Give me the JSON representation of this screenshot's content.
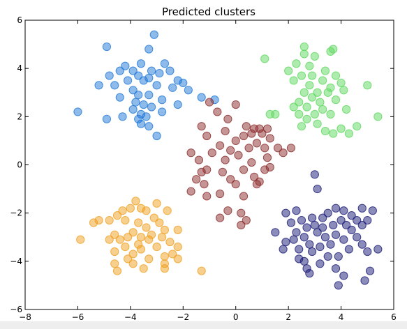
{
  "chart_data": {
    "type": "scatter",
    "title": "Predicted clusters",
    "xlabel": "",
    "ylabel": "",
    "xlim": [
      -8,
      6
    ],
    "ylim": [
      -6,
      6
    ],
    "xticks": [
      -8,
      -6,
      -4,
      -2,
      0,
      2,
      4,
      6
    ],
    "yticks": [
      -6,
      -4,
      -2,
      0,
      2,
      4,
      6
    ],
    "xtick_labels": [
      "−8",
      "−6",
      "−4",
      "−2",
      "0",
      "2",
      "4",
      "6"
    ],
    "ytick_labels": [
      "−6",
      "−4",
      "−2",
      "0",
      "2",
      "4",
      "6"
    ],
    "grid": false,
    "legend": false,
    "marker_opacity": 0.5,
    "series": [
      {
        "color": "#1f78d8",
        "points": [
          [
            -3.1,
            5.4
          ],
          [
            -4.9,
            4.9
          ],
          [
            -3.3,
            4.8
          ],
          [
            -4.2,
            4.1
          ],
          [
            -3.6,
            4.2
          ],
          [
            -2.7,
            4.2
          ],
          [
            -4.4,
            3.9
          ],
          [
            -3.9,
            3.9
          ],
          [
            -3.2,
            3.9
          ],
          [
            -2.9,
            3.8
          ],
          [
            -2.5,
            3.9
          ],
          [
            -4.8,
            3.7
          ],
          [
            -3.7,
            3.7
          ],
          [
            -3.3,
            3.6
          ],
          [
            -2.2,
            3.5
          ],
          [
            -4.1,
            3.5
          ],
          [
            -3.5,
            3.5
          ],
          [
            -2.0,
            3.4
          ],
          [
            -5.2,
            3.3
          ],
          [
            -4.6,
            3.3
          ],
          [
            -3.0,
            3.3
          ],
          [
            -3.9,
            3.1
          ],
          [
            -2.4,
            3.2
          ],
          [
            -1.8,
            3.1
          ],
          [
            -3.7,
            2.9
          ],
          [
            -3.3,
            2.9
          ],
          [
            -2.8,
            2.7
          ],
          [
            -4.4,
            2.8
          ],
          [
            -1.3,
            2.8
          ],
          [
            -3.8,
            2.6
          ],
          [
            -3.5,
            2.5
          ],
          [
            -2.2,
            2.5
          ],
          [
            -3.9,
            2.3
          ],
          [
            -3.2,
            2.4
          ],
          [
            -3.6,
            2.1
          ],
          [
            -2.8,
            2.2
          ],
          [
            -4.3,
            2.0
          ],
          [
            -3.4,
            2.0
          ],
          [
            -6.0,
            2.2
          ],
          [
            -4.9,
            1.9
          ],
          [
            -3.7,
            1.9
          ],
          [
            -3.3,
            1.6
          ],
          [
            -3.6,
            1.7
          ],
          [
            -3.0,
            1.2
          ],
          [
            -0.8,
            2.7
          ]
        ]
      },
      {
        "color": "#5ed85e",
        "points": [
          [
            2.6,
            4.9
          ],
          [
            3.7,
            4.8
          ],
          [
            2.6,
            4.6
          ],
          [
            3.0,
            4.5
          ],
          [
            3.6,
            4.7
          ],
          [
            1.1,
            4.4
          ],
          [
            2.3,
            4.2
          ],
          [
            2.8,
            4.1
          ],
          [
            2.0,
            3.9
          ],
          [
            3.4,
            3.9
          ],
          [
            2.5,
            3.7
          ],
          [
            2.9,
            3.7
          ],
          [
            3.8,
            3.7
          ],
          [
            2.2,
            3.5
          ],
          [
            3.3,
            3.5
          ],
          [
            4.0,
            3.4
          ],
          [
            2.8,
            3.3
          ],
          [
            3.6,
            3.2
          ],
          [
            2.6,
            3.0
          ],
          [
            3.1,
            3.0
          ],
          [
            3.5,
            3.0
          ],
          [
            4.1,
            3.1
          ],
          [
            5.0,
            3.3
          ],
          [
            2.9,
            2.8
          ],
          [
            2.4,
            2.6
          ],
          [
            3.2,
            2.6
          ],
          [
            3.8,
            2.7
          ],
          [
            2.7,
            2.4
          ],
          [
            3.3,
            2.3
          ],
          [
            2.2,
            2.4
          ],
          [
            4.2,
            2.3
          ],
          [
            3.0,
            2.1
          ],
          [
            3.6,
            2.1
          ],
          [
            2.4,
            2.1
          ],
          [
            1.5,
            2.1
          ],
          [
            1.3,
            2.1
          ],
          [
            5.4,
            2.0
          ],
          [
            2.7,
            1.9
          ],
          [
            3.1,
            1.7
          ],
          [
            4.6,
            1.6
          ],
          [
            2.5,
            1.6
          ],
          [
            4.0,
            1.5
          ],
          [
            3.4,
            1.4
          ],
          [
            3.7,
            1.3
          ],
          [
            4.3,
            1.3
          ]
        ]
      },
      {
        "color": "#8b2c2c",
        "points": [
          [
            -1.0,
            2.6
          ],
          [
            0.0,
            2.5
          ],
          [
            -0.7,
            2.2
          ],
          [
            -0.3,
            1.9
          ],
          [
            -1.3,
            1.6
          ],
          [
            0.4,
            1.6
          ],
          [
            0.7,
            1.5
          ],
          [
            0.9,
            1.5
          ],
          [
            1.2,
            1.5
          ],
          [
            -0.4,
            1.4
          ],
          [
            0.6,
            1.3
          ],
          [
            1.0,
            1.3
          ],
          [
            0.3,
            1.2
          ],
          [
            -1.1,
            1.2
          ],
          [
            1.3,
            1.1
          ],
          [
            0.0,
            1.0
          ],
          [
            0.8,
            0.9
          ],
          [
            -0.6,
            0.8
          ],
          [
            1.6,
            0.7
          ],
          [
            -0.2,
            0.6
          ],
          [
            0.5,
            0.7
          ],
          [
            1.1,
            0.7
          ],
          [
            2.1,
            0.7
          ],
          [
            -1.7,
            0.5
          ],
          [
            -0.9,
            0.5
          ],
          [
            0.1,
            0.4
          ],
          [
            1.2,
            0.3
          ],
          [
            1.8,
            0.5
          ],
          [
            -1.4,
            0.2
          ],
          [
            -0.4,
            0.2
          ],
          [
            0.6,
            0.1
          ],
          [
            1.3,
            -0.1
          ],
          [
            -1.3,
            -0.3
          ],
          [
            -1.1,
            -0.2
          ],
          [
            -0.5,
            -0.3
          ],
          [
            0.3,
            -0.2
          ],
          [
            1.1,
            -0.2
          ],
          [
            -1.5,
            -0.6
          ],
          [
            -0.2,
            -0.6
          ],
          [
            0.7,
            -0.5
          ],
          [
            0.9,
            -0.7
          ],
          [
            -1.2,
            -0.8
          ],
          [
            0.8,
            -0.8
          ],
          [
            0.0,
            -0.8
          ],
          [
            -1.7,
            -1.1
          ],
          [
            -0.6,
            -1.2
          ],
          [
            0.3,
            -1.3
          ],
          [
            -1.1,
            -1.3
          ],
          [
            -0.3,
            -1.9
          ],
          [
            0.2,
            -2.0
          ],
          [
            -0.6,
            -2.2
          ],
          [
            0.4,
            -2.3
          ],
          [
            0.2,
            -2.5
          ]
        ]
      },
      {
        "color": "#f0a020",
        "points": [
          [
            -3.8,
            -1.5
          ],
          [
            -4.0,
            -1.8
          ],
          [
            -3.6,
            -1.8
          ],
          [
            -3.0,
            -1.6
          ],
          [
            -4.3,
            -1.9
          ],
          [
            -3.4,
            -1.9
          ],
          [
            -2.6,
            -1.9
          ],
          [
            -4.5,
            -2.1
          ],
          [
            -3.1,
            -2.2
          ],
          [
            -3.7,
            -2.4
          ],
          [
            -4.2,
            -2.3
          ],
          [
            -2.9,
            -2.4
          ],
          [
            -5.2,
            -2.3
          ],
          [
            -4.8,
            -2.3
          ],
          [
            -5.4,
            -2.4
          ],
          [
            -3.4,
            -2.6
          ],
          [
            -2.7,
            -2.7
          ],
          [
            -3.9,
            -2.8
          ],
          [
            -3.2,
            -2.9
          ],
          [
            -4.6,
            -2.9
          ],
          [
            -3.6,
            -3.0
          ],
          [
            -2.2,
            -2.7
          ],
          [
            -2.8,
            -3.0
          ],
          [
            -4.1,
            -3.0
          ],
          [
            -4.4,
            -3.1
          ],
          [
            -3.3,
            -3.1
          ],
          [
            -4.8,
            -3.1
          ],
          [
            -5.9,
            -3.1
          ],
          [
            -3.7,
            -3.3
          ],
          [
            -2.5,
            -3.2
          ],
          [
            -4.2,
            -3.4
          ],
          [
            -3.0,
            -3.4
          ],
          [
            -2.2,
            -3.4
          ],
          [
            -4.6,
            -3.6
          ],
          [
            -3.6,
            -3.5
          ],
          [
            -2.4,
            -3.7
          ],
          [
            -3.9,
            -3.7
          ],
          [
            -2.7,
            -3.8
          ],
          [
            -4.1,
            -3.9
          ],
          [
            -3.3,
            -3.9
          ],
          [
            -2.2,
            -3.9
          ],
          [
            -4.6,
            -4.1
          ],
          [
            -3.9,
            -4.1
          ],
          [
            -2.7,
            -4.1
          ],
          [
            -3.5,
            -4.3
          ],
          [
            -2.7,
            -4.3
          ],
          [
            -4.5,
            -4.4
          ],
          [
            -1.3,
            -4.4
          ]
        ]
      },
      {
        "color": "#1a1a78",
        "points": [
          [
            3.0,
            -0.4
          ],
          [
            3.1,
            -1.0
          ],
          [
            3.8,
            -1.8
          ],
          [
            4.8,
            -1.8
          ],
          [
            5.2,
            -1.9
          ],
          [
            2.3,
            -1.9
          ],
          [
            4.1,
            -1.9
          ],
          [
            3.5,
            -2.0
          ],
          [
            1.9,
            -2.0
          ],
          [
            4.4,
            -2.1
          ],
          [
            2.9,
            -2.2
          ],
          [
            3.3,
            -2.2
          ],
          [
            2.5,
            -2.3
          ],
          [
            4.0,
            -2.3
          ],
          [
            4.6,
            -2.3
          ],
          [
            5.0,
            -2.3
          ],
          [
            2.1,
            -2.4
          ],
          [
            3.0,
            -2.5
          ],
          [
            4.2,
            -2.5
          ],
          [
            3.7,
            -2.5
          ],
          [
            4.8,
            -2.5
          ],
          [
            2.7,
            -2.6
          ],
          [
            3.3,
            -2.6
          ],
          [
            1.5,
            -2.8
          ],
          [
            2.3,
            -2.8
          ],
          [
            3.1,
            -2.8
          ],
          [
            4.4,
            -2.7
          ],
          [
            3.8,
            -2.9
          ],
          [
            2.6,
            -3.0
          ],
          [
            2.2,
            -3.1
          ],
          [
            3.4,
            -3.0
          ],
          [
            4.1,
            -3.1
          ],
          [
            4.6,
            -3.0
          ],
          [
            1.9,
            -3.2
          ],
          [
            2.8,
            -3.3
          ],
          [
            3.6,
            -3.3
          ],
          [
            4.8,
            -3.3
          ],
          [
            3.2,
            -3.4
          ],
          [
            2.4,
            -3.5
          ],
          [
            1.8,
            -3.5
          ],
          [
            4.3,
            -3.5
          ],
          [
            2.9,
            -3.6
          ],
          [
            5.0,
            -3.6
          ],
          [
            3.5,
            -3.8
          ],
          [
            2.4,
            -3.9
          ],
          [
            3.9,
            -3.8
          ],
          [
            2.6,
            -4.0
          ],
          [
            3.2,
            -4.1
          ],
          [
            2.7,
            -4.3
          ],
          [
            3.8,
            -4.3
          ],
          [
            2.8,
            -4.5
          ],
          [
            5.1,
            -4.4
          ],
          [
            4.1,
            -4.6
          ],
          [
            4.9,
            -4.8
          ],
          [
            3.9,
            -5.0
          ],
          [
            5.4,
            -3.5
          ]
        ]
      }
    ]
  }
}
